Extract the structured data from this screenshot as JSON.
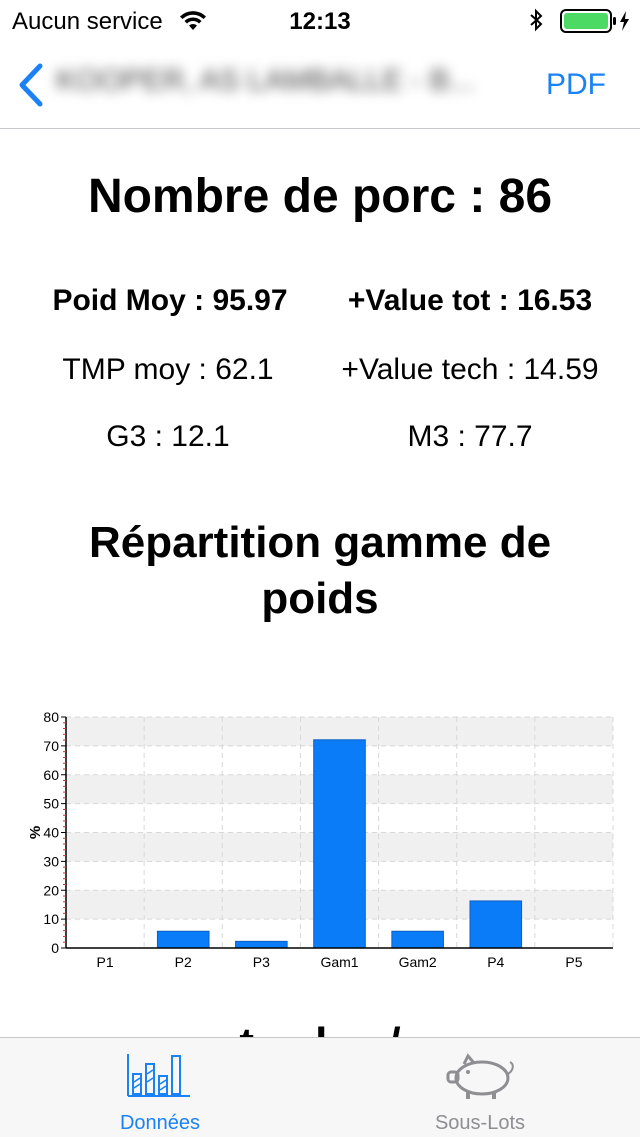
{
  "status_bar": {
    "carrier": "Aucun service",
    "time": "12:13"
  },
  "nav": {
    "title": "KOOPER, AS LAMBALLE - B...",
    "pdf_label": "PDF"
  },
  "summary": {
    "pig_count": "Nombre de porc : 86",
    "avg_weight": "Poid Moy : 95.97",
    "value_total": "+Value tot : 16.53",
    "tmp_avg": "TMP moy : 62.1",
    "value_tech": "+Value tech : 14.59",
    "g3": "G3 : 12.1",
    "m3": "M3 : 77.7"
  },
  "section_title": "Répartition gamme de poids",
  "next_section_partial": "... ... t ... l ... / ... ...",
  "chart_data": {
    "type": "bar",
    "categories": [
      "P1",
      "P2",
      "P3",
      "Gam1",
      "Gam2",
      "P4",
      "P5"
    ],
    "values": [
      0,
      5.8,
      2.3,
      72.1,
      5.8,
      16.3,
      0
    ],
    "ylabel": "%",
    "ylim": [
      0,
      80
    ],
    "yticks": [
      "0",
      "10",
      "20",
      "30",
      "40",
      "50",
      "60",
      "70",
      "80"
    ],
    "grid": true,
    "bar_color": "#0a7cf8"
  },
  "tab_bar": {
    "tabs": [
      {
        "label": "Données",
        "icon": "bar-chart-icon",
        "active": true
      },
      {
        "label": "Sous-Lots",
        "icon": "pig-icon",
        "active": false
      }
    ]
  },
  "colors": {
    "accent": "#1a82f5",
    "inactive": "#8e8e93"
  }
}
